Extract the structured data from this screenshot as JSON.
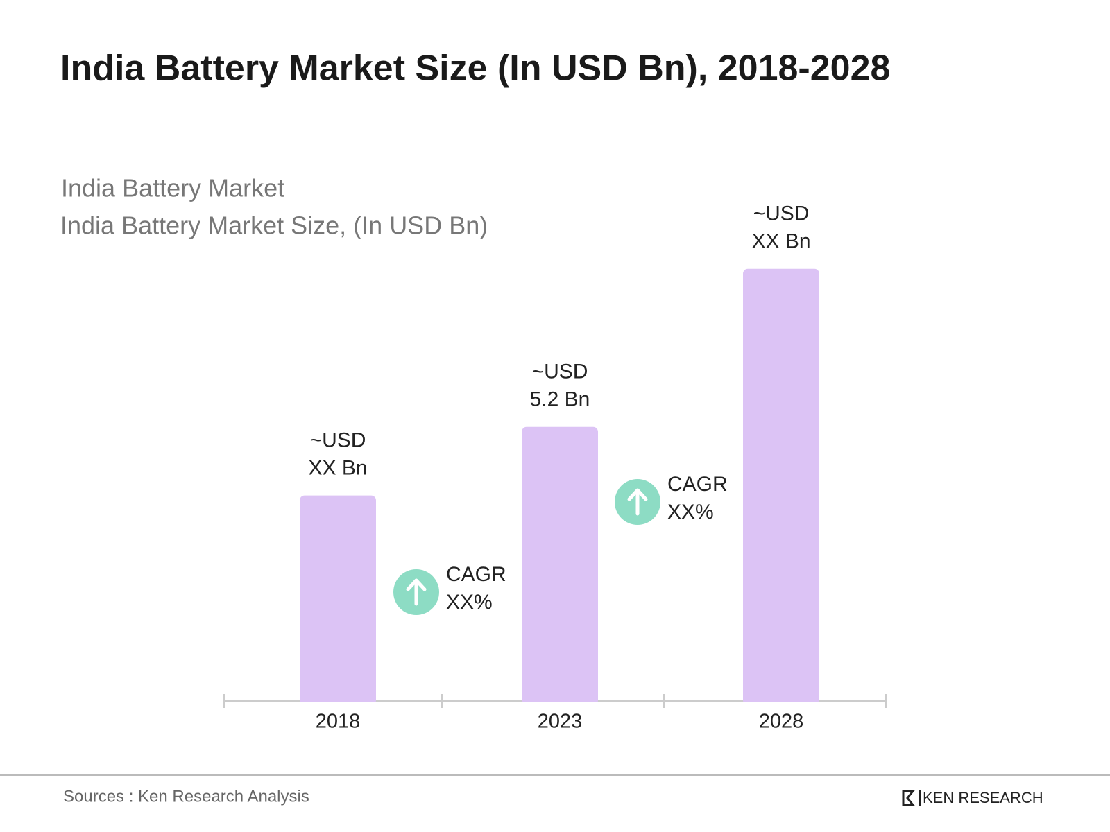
{
  "chart_data": {
    "type": "bar",
    "title": "India Battery Market Size (In USD Bn), 2018-2028",
    "subtitle": [
      "India Battery Market",
      "India Battery Market Size, (In USD Bn)"
    ],
    "categories": [
      "2018",
      "2023",
      "2028"
    ],
    "values": [
      3.9,
      5.2,
      8.2
    ],
    "value_labels": [
      [
        "~USD",
        "XX Bn"
      ],
      [
        "~USD",
        "5.2 Bn"
      ],
      [
        "~USD",
        "XX Bn"
      ]
    ],
    "color": "#dcc3f5",
    "annotations": [
      [
        "CAGR",
        "XX%"
      ],
      [
        "CAGR",
        "XX%"
      ]
    ],
    "annotation_color": "#8ddcc4",
    "source": "Sources : Ken Research Analysis",
    "logo": "KEN RESEARCH"
  }
}
